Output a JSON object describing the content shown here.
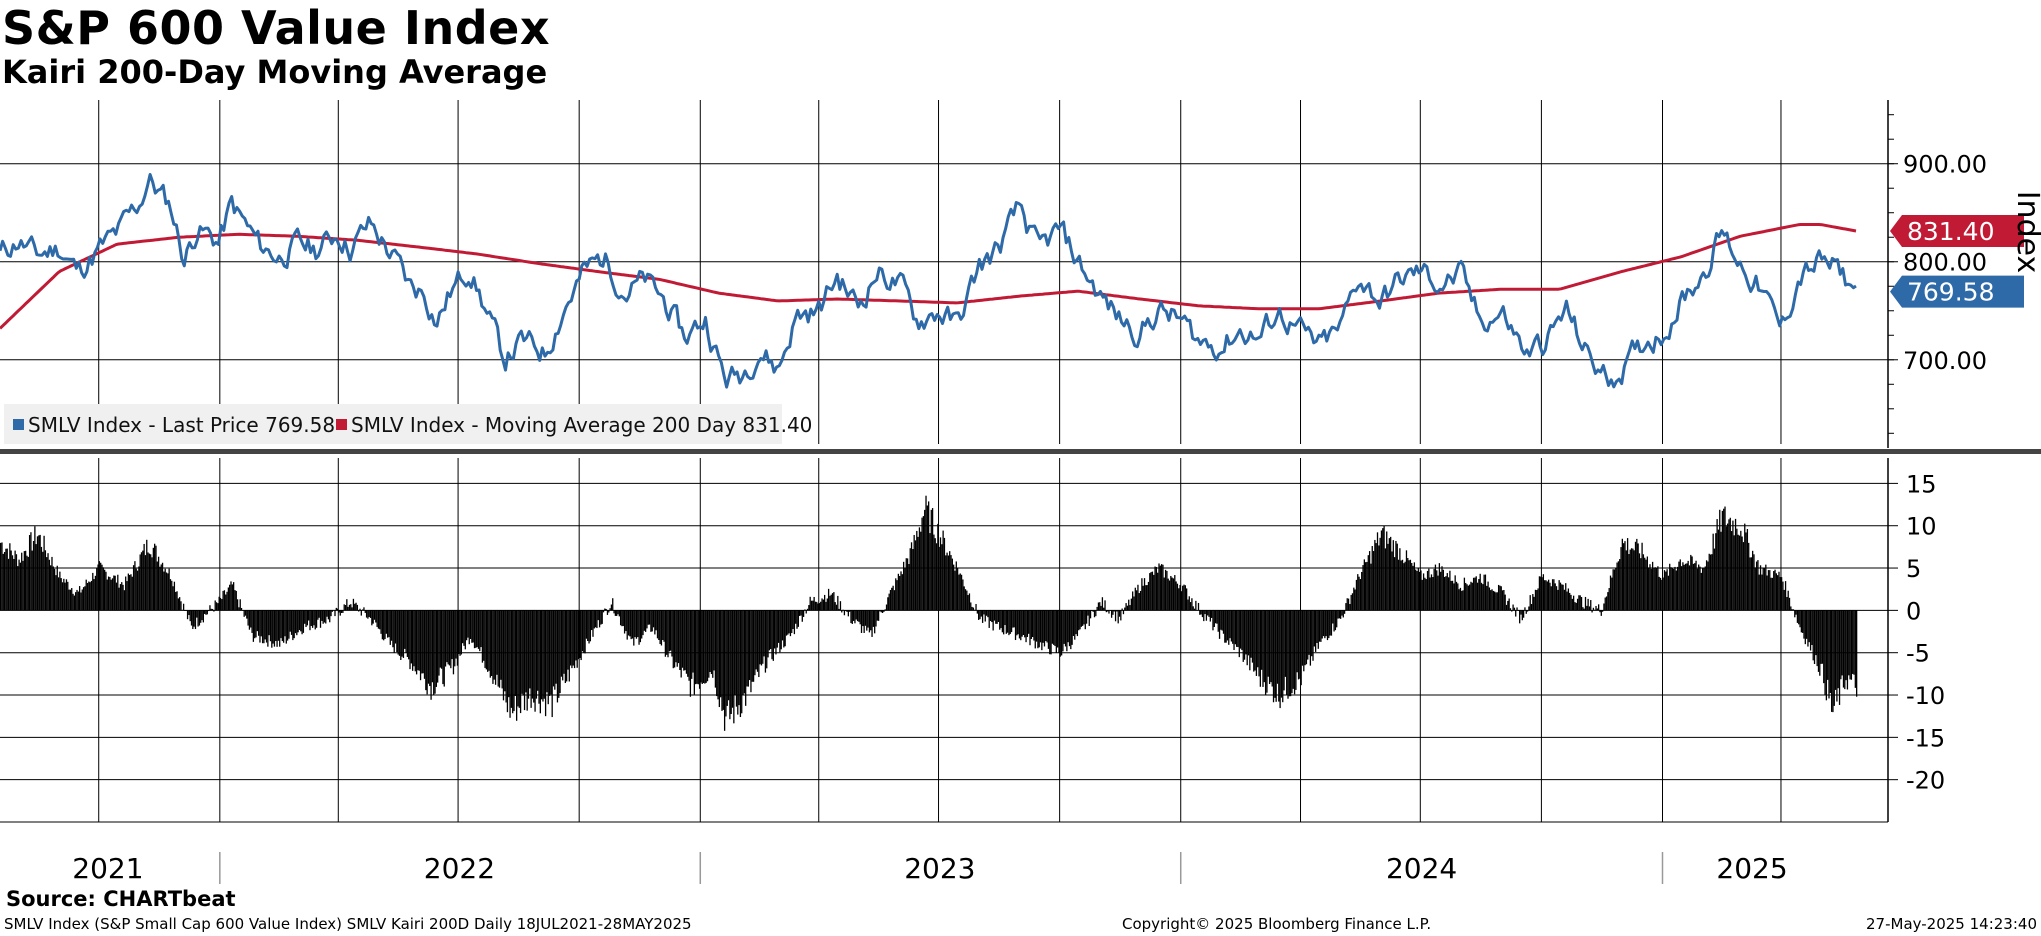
{
  "title": "S&P 600 Value Index",
  "subtitle": "Kairi 200-Day Moving Average",
  "source": "Source:  CHARTbeat",
  "footer": {
    "left": "SMLV Index (S&P Small Cap 600 Value Index) SMLV Kairi 200D  Daily 18JUL2021-28MAY2025",
    "center": "Copyright© 2025 Bloomberg Finance L.P.",
    "right": "27-May-2025 14:23:40"
  },
  "colors": {
    "price": "#2e6aa8",
    "ma": "#c01a35",
    "kairi": "#000000",
    "legend_bg": "#f0f0f0"
  },
  "chart_data": [
    {
      "type": "line",
      "title": "S&P 600 Value Index",
      "ylabel": "Index",
      "ylim": [
        610,
        965
      ],
      "yticks": [
        "700.00",
        "800.00",
        "900.00"
      ],
      "xlim": [
        "2021-07-18",
        "2025-05-28"
      ],
      "xticks": [
        "2021",
        "2022",
        "2023",
        "2024",
        "2025"
      ],
      "grid": true,
      "legend_position": "bottom-left",
      "last_value_tags": [
        {
          "series": "ma",
          "label": "831.40"
        },
        {
          "series": "price",
          "label": "769.58"
        }
      ],
      "series": [
        {
          "name": "SMLV Index - Last Price 769.58",
          "key": "price",
          "points": [
            [
              "2021-07-18",
              808
            ],
            [
              "2021-08-01",
              822
            ],
            [
              "2021-08-15",
              806
            ],
            [
              "2021-09-01",
              815
            ],
            [
              "2021-09-15",
              790
            ],
            [
              "2021-10-01",
              812
            ],
            [
              "2021-10-15",
              828
            ],
            [
              "2021-11-01",
              860
            ],
            [
              "2021-11-08",
              885
            ],
            [
              "2021-11-25",
              855
            ],
            [
              "2021-12-05",
              803
            ],
            [
              "2021-12-15",
              835
            ],
            [
              "2021-12-31",
              820
            ],
            [
              "2022-01-10",
              858
            ],
            [
              "2022-01-20",
              838
            ],
            [
              "2022-02-01",
              815
            ],
            [
              "2022-02-15",
              805
            ],
            [
              "2022-03-01",
              818
            ],
            [
              "2022-03-15",
              812
            ],
            [
              "2022-04-01",
              830
            ],
            [
              "2022-04-10",
              815
            ],
            [
              "2022-04-25",
              838
            ],
            [
              "2022-05-05",
              820
            ],
            [
              "2022-05-15",
              800
            ],
            [
              "2022-05-25",
              775
            ],
            [
              "2022-06-05",
              770
            ],
            [
              "2022-06-15",
              740
            ],
            [
              "2022-06-25",
              768
            ],
            [
              "2022-07-10",
              795
            ],
            [
              "2022-07-25",
              740
            ],
            [
              "2022-08-05",
              700
            ],
            [
              "2022-08-18",
              718
            ],
            [
              "2022-09-05",
              708
            ],
            [
              "2022-09-20",
              755
            ],
            [
              "2022-10-05",
              790
            ],
            [
              "2022-10-20",
              805
            ],
            [
              "2022-11-05",
              770
            ],
            [
              "2022-11-20",
              780
            ],
            [
              "2022-12-05",
              760
            ],
            [
              "2022-12-20",
              722
            ],
            [
              "2023-01-05",
              742
            ],
            [
              "2023-01-20",
              680
            ],
            [
              "2023-02-01",
              685
            ],
            [
              "2023-02-15",
              712
            ],
            [
              "2023-03-01",
              690
            ],
            [
              "2023-03-15",
              745
            ],
            [
              "2023-04-01",
              750
            ],
            [
              "2023-04-15",
              785
            ],
            [
              "2023-05-01",
              755
            ],
            [
              "2023-05-15",
              790
            ],
            [
              "2023-06-01",
              778
            ],
            [
              "2023-06-15",
              740
            ],
            [
              "2023-07-01",
              750
            ],
            [
              "2023-07-15",
              735
            ],
            [
              "2023-08-01",
              795
            ],
            [
              "2023-08-15",
              812
            ],
            [
              "2023-09-01",
              855
            ],
            [
              "2023-09-15",
              810
            ],
            [
              "2023-10-01",
              832
            ],
            [
              "2023-10-15",
              800
            ],
            [
              "2023-11-01",
              765
            ],
            [
              "2023-11-15",
              742
            ],
            [
              "2023-12-01",
              728
            ],
            [
              "2023-12-15",
              750
            ],
            [
              "2024-01-01",
              740
            ],
            [
              "2024-01-15",
              718
            ],
            [
              "2024-02-01",
              715
            ],
            [
              "2024-02-15",
              730
            ],
            [
              "2024-03-01",
              722
            ],
            [
              "2024-03-15",
              750
            ],
            [
              "2024-04-01",
              728
            ],
            [
              "2024-04-15",
              712
            ],
            [
              "2024-05-01",
              730
            ],
            [
              "2024-05-15",
              785
            ],
            [
              "2024-06-01",
              760
            ],
            [
              "2024-06-15",
              780
            ],
            [
              "2024-07-01",
              790
            ],
            [
              "2024-07-15",
              778
            ],
            [
              "2024-08-01",
              785
            ],
            [
              "2024-08-15",
              740
            ],
            [
              "2024-09-01",
              748
            ],
            [
              "2024-09-20",
              705
            ],
            [
              "2024-10-05",
              720
            ],
            [
              "2024-10-20",
              750
            ],
            [
              "2024-11-05",
              705
            ],
            [
              "2024-11-20",
              680
            ],
            [
              "2024-12-05",
              695
            ],
            [
              "2024-12-20",
              720
            ],
            [
              "2025-01-01",
              728
            ],
            [
              "2025-01-15",
              760
            ],
            [
              "2025-02-01",
              790
            ],
            [
              "2025-02-15",
              830
            ],
            [
              "2025-03-01",
              800
            ],
            [
              "2025-03-15",
              775
            ],
            [
              "2025-04-01",
              730
            ],
            [
              "2025-04-15",
              785
            ],
            [
              "2025-05-01",
              800
            ],
            [
              "2025-05-15",
              790
            ],
            [
              "2025-05-28",
              769.58
            ]
          ]
        },
        {
          "name": "SMLV Index - Moving Average 200 Day 831.40",
          "key": "ma",
          "points": [
            [
              "2021-07-18",
              732
            ],
            [
              "2021-09-01",
              790
            ],
            [
              "2021-10-15",
              818
            ],
            [
              "2021-12-01",
              825
            ],
            [
              "2022-01-15",
              828
            ],
            [
              "2022-03-01",
              826
            ],
            [
              "2022-04-15",
              822
            ],
            [
              "2022-06-01",
              815
            ],
            [
              "2022-07-15",
              808
            ],
            [
              "2022-09-01",
              798
            ],
            [
              "2022-10-15",
              790
            ],
            [
              "2022-12-01",
              782
            ],
            [
              "2023-01-15",
              768
            ],
            [
              "2023-03-01",
              760
            ],
            [
              "2023-04-15",
              762
            ],
            [
              "2023-06-01",
              760
            ],
            [
              "2023-07-15",
              758
            ],
            [
              "2023-09-01",
              765
            ],
            [
              "2023-10-15",
              770
            ],
            [
              "2023-12-01",
              762
            ],
            [
              "2024-01-15",
              755
            ],
            [
              "2024-03-01",
              752
            ],
            [
              "2024-04-15",
              752
            ],
            [
              "2024-06-01",
              760
            ],
            [
              "2024-07-15",
              768
            ],
            [
              "2024-09-01",
              772
            ],
            [
              "2024-10-15",
              772
            ],
            [
              "2024-12-01",
              790
            ],
            [
              "2025-01-15",
              805
            ],
            [
              "2025-03-01",
              826
            ],
            [
              "2025-04-15",
              838
            ],
            [
              "2025-05-01",
              838
            ],
            [
              "2025-05-28",
              831.4
            ]
          ]
        }
      ]
    },
    {
      "type": "bar",
      "title": "SMLV Kairi 200D",
      "ylim": [
        -25,
        18
      ],
      "yticks": [
        "15",
        "10",
        "5",
        "0",
        "-5",
        "-10",
        "-15",
        "-20"
      ],
      "grid": true,
      "series": [
        {
          "name": "Kairi 200D",
          "points": [
            [
              "2021-07-18",
              8
            ],
            [
              "2021-08-01",
              6
            ],
            [
              "2021-08-15",
              9
            ],
            [
              "2021-09-01",
              4
            ],
            [
              "2021-09-15",
              2
            ],
            [
              "2021-10-01",
              5
            ],
            [
              "2021-10-20",
              3
            ],
            [
              "2021-11-08",
              8
            ],
            [
              "2021-11-25",
              4
            ],
            [
              "2021-12-10",
              -2
            ],
            [
              "2021-12-31",
              1
            ],
            [
              "2022-01-10",
              3
            ],
            [
              "2022-01-25",
              -3
            ],
            [
              "2022-02-15",
              -4
            ],
            [
              "2022-03-05",
              -2
            ],
            [
              "2022-03-25",
              -1
            ],
            [
              "2022-04-10",
              1
            ],
            [
              "2022-04-25",
              -1
            ],
            [
              "2022-05-10",
              -4
            ],
            [
              "2022-05-25",
              -6
            ],
            [
              "2022-06-10",
              -9
            ],
            [
              "2022-06-25",
              -7
            ],
            [
              "2022-07-10",
              -3
            ],
            [
              "2022-07-25",
              -7
            ],
            [
              "2022-08-10",
              -12
            ],
            [
              "2022-08-25",
              -10
            ],
            [
              "2022-09-10",
              -11
            ],
            [
              "2022-09-25",
              -7
            ],
            [
              "2022-10-10",
              -3
            ],
            [
              "2022-10-25",
              1
            ],
            [
              "2022-11-10",
              -4
            ],
            [
              "2022-11-25",
              -2
            ],
            [
              "2022-12-10",
              -6
            ],
            [
              "2022-12-25",
              -9
            ],
            [
              "2023-01-10",
              -7
            ],
            [
              "2023-01-20",
              -13
            ],
            [
              "2023-02-05",
              -10
            ],
            [
              "2023-02-20",
              -6
            ],
            [
              "2023-03-10",
              -3
            ],
            [
              "2023-03-25",
              1
            ],
            [
              "2023-04-10",
              2
            ],
            [
              "2023-04-25",
              -1
            ],
            [
              "2023-05-10",
              -3
            ],
            [
              "2023-05-25",
              2
            ],
            [
              "2023-06-10",
              7
            ],
            [
              "2023-06-20",
              12
            ],
            [
              "2023-07-01",
              9
            ],
            [
              "2023-07-15",
              5
            ],
            [
              "2023-08-01",
              -1
            ],
            [
              "2023-08-15",
              -2
            ],
            [
              "2023-09-01",
              -3
            ],
            [
              "2023-09-15",
              -4
            ],
            [
              "2023-10-01",
              -5
            ],
            [
              "2023-10-15",
              -3
            ],
            [
              "2023-11-01",
              1
            ],
            [
              "2023-11-15",
              -1
            ],
            [
              "2023-12-01",
              3
            ],
            [
              "2023-12-15",
              5
            ],
            [
              "2024-01-01",
              3
            ],
            [
              "2024-01-15",
              0
            ],
            [
              "2024-02-01",
              -3
            ],
            [
              "2024-02-15",
              -5
            ],
            [
              "2024-03-01",
              -8
            ],
            [
              "2024-03-15",
              -10
            ],
            [
              "2024-04-01",
              -8
            ],
            [
              "2024-04-15",
              -4
            ],
            [
              "2024-05-01",
              -1
            ],
            [
              "2024-05-15",
              4
            ],
            [
              "2024-06-01",
              9
            ],
            [
              "2024-06-15",
              7
            ],
            [
              "2024-07-01",
              4
            ],
            [
              "2024-07-15",
              5
            ],
            [
              "2024-08-01",
              3
            ],
            [
              "2024-08-15",
              4
            ],
            [
              "2024-09-01",
              2
            ],
            [
              "2024-09-15",
              -1
            ],
            [
              "2024-10-01",
              4
            ],
            [
              "2024-10-15",
              3
            ],
            [
              "2024-11-01",
              1
            ],
            [
              "2024-11-15",
              0
            ],
            [
              "2024-12-01",
              8
            ],
            [
              "2024-12-15",
              7
            ],
            [
              "2025-01-01",
              4
            ],
            [
              "2025-01-15",
              6
            ],
            [
              "2025-02-01",
              5
            ],
            [
              "2025-02-15",
              11
            ],
            [
              "2025-03-01",
              10
            ],
            [
              "2025-03-15",
              5
            ],
            [
              "2025-04-01",
              4
            ],
            [
              "2025-04-15",
              -2
            ],
            [
              "2025-05-01",
              -7
            ],
            [
              "2025-05-10",
              -12
            ],
            [
              "2025-05-20",
              -8
            ],
            [
              "2025-05-28",
              -9
            ]
          ]
        }
      ]
    }
  ]
}
